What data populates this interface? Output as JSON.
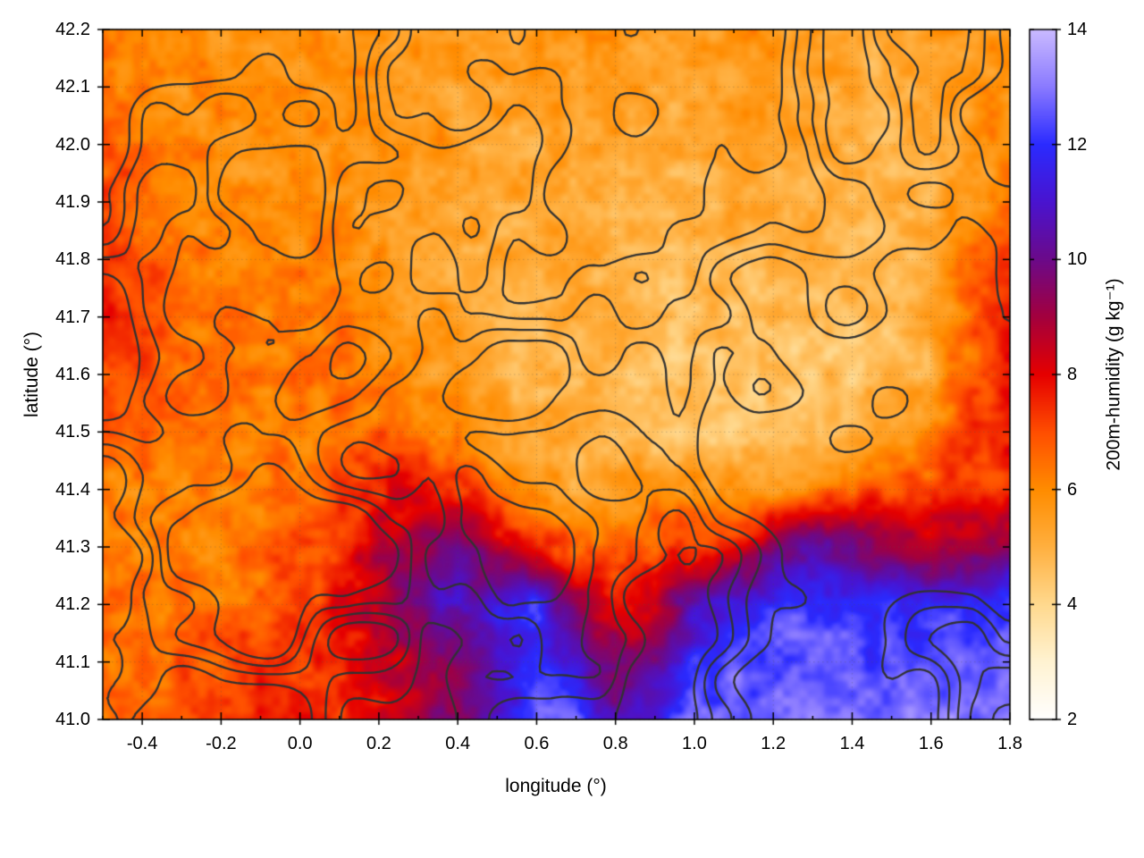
{
  "chart_data": {
    "type": "heatmap",
    "title": "",
    "xlabel": "longitude (°)",
    "ylabel": "latitude (°)",
    "colorbar_label": "200m-humidity (g kg⁻¹)",
    "xlim": [
      -0.5,
      1.8
    ],
    "ylim": [
      41.0,
      42.2
    ],
    "zlim": [
      2,
      14
    ],
    "x_ticks": [
      -0.4,
      -0.2,
      0.0,
      0.2,
      0.4,
      0.6,
      0.8,
      1.0,
      1.2,
      1.4,
      1.6,
      1.8
    ],
    "x_minor_tick_step": 0.1,
    "y_ticks": [
      41.0,
      41.1,
      41.2,
      41.3,
      41.4,
      41.5,
      41.6,
      41.7,
      41.8,
      41.9,
      42.0,
      42.1,
      42.2
    ],
    "colorbar_ticks": [
      2,
      4,
      6,
      8,
      10,
      12,
      14
    ],
    "grid_on": true,
    "legend_position": "right-colorbar",
    "contour_overlay": {
      "description": "dark terrain-style contour lines overlaid on humidity field",
      "color": "#323232",
      "levels": [
        0.4,
        0.48,
        0.56,
        0.64
      ]
    },
    "palette": [
      {
        "value": 2,
        "color": "#ffffff"
      },
      {
        "value": 3,
        "color": "#fff3d2"
      },
      {
        "value": 4,
        "color": "#ffd98e"
      },
      {
        "value": 5,
        "color": "#ffb040"
      },
      {
        "value": 6,
        "color": "#ff8c00"
      },
      {
        "value": 7,
        "color": "#ff4e00"
      },
      {
        "value": 8,
        "color": "#e60000"
      },
      {
        "value": 9,
        "color": "#a4003e"
      },
      {
        "value": 10,
        "color": "#6c0a8a"
      },
      {
        "value": 11,
        "color": "#4a14d0"
      },
      {
        "value": 12,
        "color": "#2b2bff"
      },
      {
        "value": 13,
        "color": "#8a7aff"
      },
      {
        "value": 14,
        "color": "#cbbaff"
      }
    ],
    "grid": {
      "x_start": -0.5,
      "x_step": 0.1,
      "y_start": 42.2,
      "y_step": -0.1,
      "nx": 24,
      "ny": 13,
      "units": "g/kg",
      "values_g_per_kg": [
        [
          6.2,
          6.0,
          5.8,
          5.8,
          5.9,
          5.8,
          5.6,
          5.7,
          5.8,
          5.6,
          5.5,
          5.6,
          5.8,
          5.6,
          5.4,
          5.5,
          5.6,
          5.7,
          5.5,
          5.3,
          5.2,
          5.4,
          5.7,
          5.9
        ],
        [
          6.4,
          6.2,
          5.9,
          5.8,
          5.7,
          5.8,
          5.9,
          5.8,
          5.6,
          5.5,
          5.4,
          5.5,
          5.7,
          5.5,
          5.3,
          5.2,
          5.4,
          5.6,
          5.4,
          5.2,
          5.1,
          5.3,
          5.6,
          6.0
        ],
        [
          6.8,
          6.5,
          6.1,
          5.9,
          5.8,
          5.7,
          5.8,
          5.9,
          5.7,
          5.4,
          5.2,
          5.3,
          5.5,
          5.4,
          5.2,
          5.1,
          5.2,
          5.4,
          5.3,
          5.1,
          5.0,
          5.2,
          5.5,
          6.1
        ],
        [
          7.1,
          6.8,
          6.3,
          6.0,
          5.9,
          5.8,
          5.7,
          5.6,
          5.5,
          5.3,
          5.1,
          5.2,
          5.3,
          5.2,
          5.0,
          4.9,
          5.0,
          5.2,
          5.1,
          4.9,
          4.9,
          5.1,
          5.6,
          6.4
        ],
        [
          7.4,
          7.0,
          6.5,
          6.2,
          6.1,
          6.2,
          6.0,
          5.8,
          5.6,
          5.4,
          5.2,
          5.1,
          5.2,
          5.1,
          4.9,
          4.8,
          4.9,
          5.0,
          4.9,
          4.8,
          4.8,
          5.2,
          6.4,
          7.4
        ],
        [
          7.6,
          7.2,
          6.6,
          6.3,
          6.2,
          6.3,
          6.1,
          5.9,
          5.6,
          5.3,
          5.1,
          5.0,
          5.1,
          5.0,
          4.8,
          4.7,
          4.6,
          4.7,
          4.6,
          4.6,
          4.7,
          5.1,
          6.6,
          7.8
        ],
        [
          7.2,
          6.9,
          6.5,
          6.4,
          6.3,
          6.4,
          6.5,
          6.2,
          5.8,
          5.5,
          5.2,
          5.1,
          5.0,
          4.9,
          4.7,
          4.6,
          4.5,
          4.5,
          4.5,
          4.6,
          4.8,
          5.3,
          6.6,
          7.6
        ],
        [
          6.7,
          6.5,
          6.3,
          6.2,
          6.1,
          6.2,
          6.4,
          6.6,
          6.3,
          5.8,
          5.4,
          5.2,
          5.0,
          4.8,
          4.6,
          4.5,
          4.4,
          4.5,
          4.6,
          4.7,
          5.0,
          6.0,
          7.3,
          7.9
        ],
        [
          6.3,
          6.2,
          6.1,
          6.1,
          6.2,
          6.5,
          7.0,
          7.6,
          8.0,
          7.4,
          6.4,
          5.6,
          5.3,
          5.4,
          5.7,
          5.9,
          5.7,
          5.6,
          6.0,
          6.6,
          7.0,
          7.2,
          7.4,
          7.2
        ],
        [
          6.2,
          6.3,
          6.2,
          6.3,
          6.5,
          6.9,
          7.4,
          8.6,
          9.0,
          9.8,
          8.6,
          7.6,
          6.8,
          6.6,
          7.0,
          7.2,
          7.8,
          9.4,
          10.8,
          10.0,
          8.8,
          8.6,
          8.8,
          9.2
        ],
        [
          6.3,
          6.4,
          6.3,
          6.4,
          6.6,
          7.0,
          7.8,
          8.8,
          10.2,
          10.8,
          11.2,
          12.0,
          9.0,
          7.8,
          8.6,
          10.4,
          11.6,
          12.0,
          12.2,
          12.0,
          11.8,
          11.9,
          12.0,
          12.1
        ],
        [
          6.5,
          6.6,
          6.7,
          6.9,
          7.1,
          7.3,
          7.5,
          8.2,
          8.8,
          9.6,
          10.8,
          12.2,
          11.0,
          9.4,
          9.8,
          11.8,
          12.4,
          12.5,
          12.6,
          12.5,
          12.4,
          12.5,
          12.6,
          12.7
        ],
        [
          6.6,
          6.8,
          7.0,
          7.4,
          7.6,
          7.4,
          7.2,
          8.0,
          8.8,
          9.8,
          11.2,
          12.6,
          12.4,
          10.2,
          11.2,
          12.6,
          12.8,
          12.9,
          13.0,
          12.9,
          12.8,
          12.9,
          13.0,
          13.1
        ]
      ]
    }
  }
}
